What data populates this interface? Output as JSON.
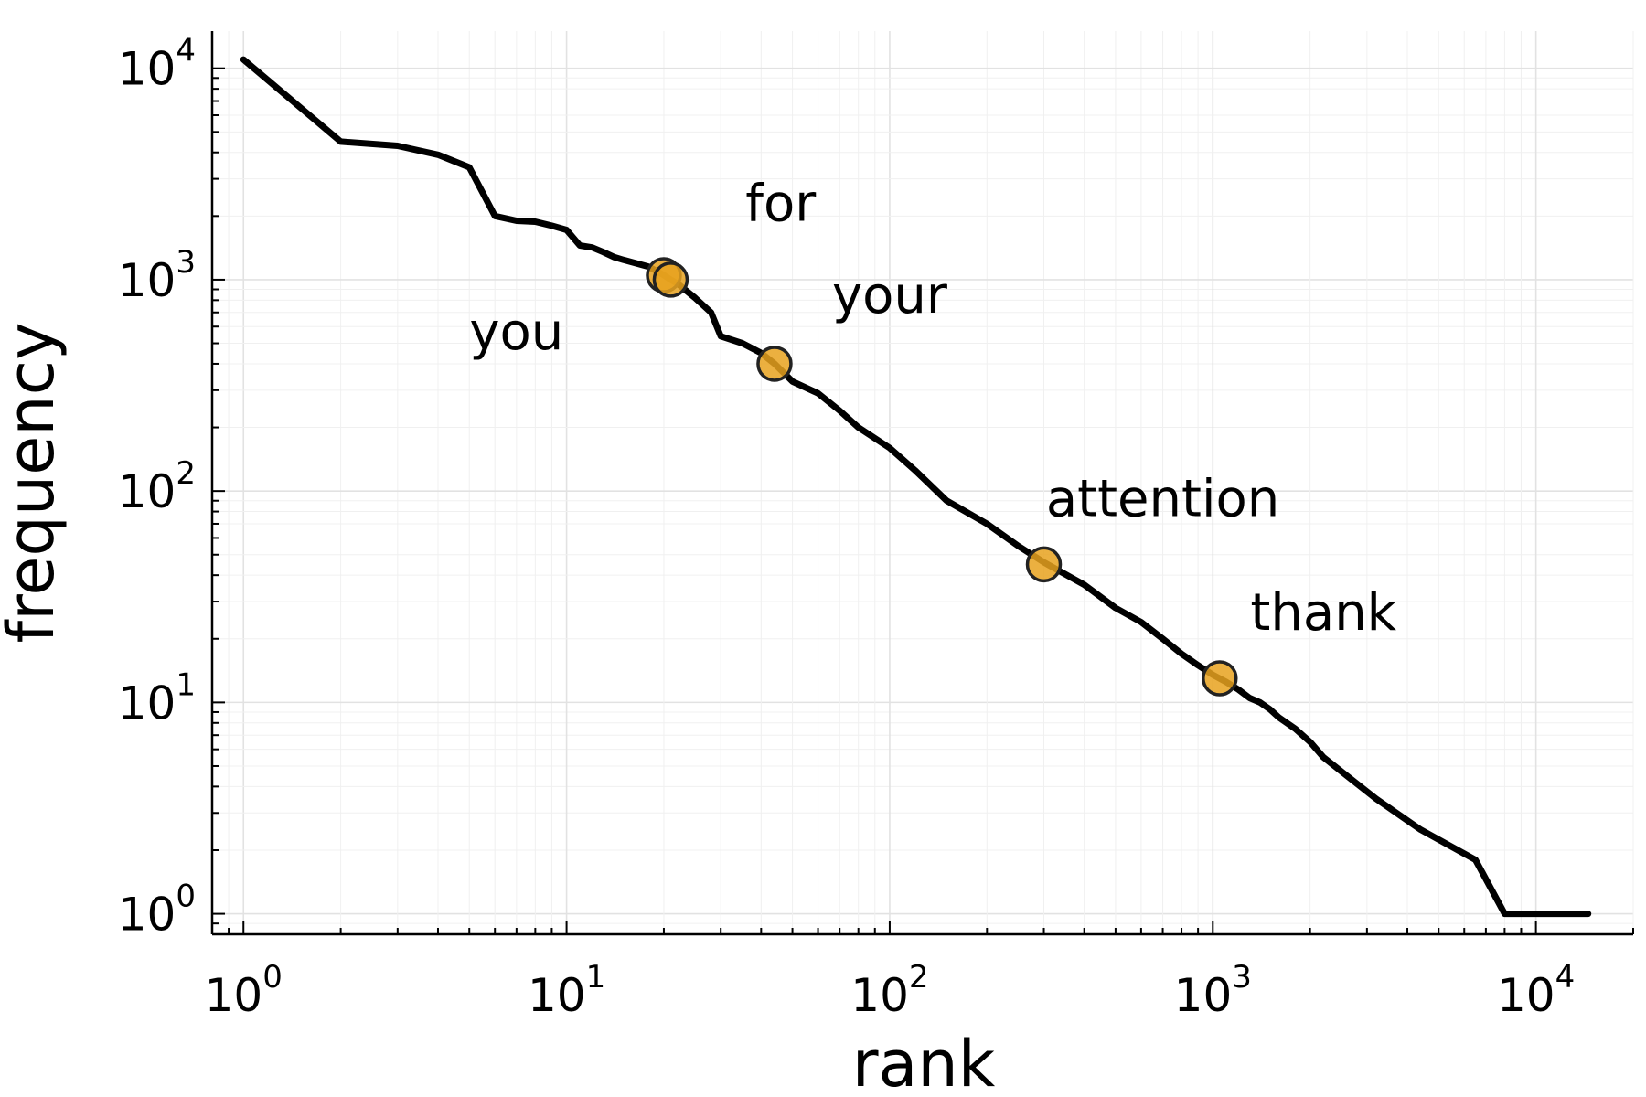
{
  "chart_data": {
    "type": "line",
    "title": "",
    "xlabel": "rank",
    "ylabel": "frequency",
    "xscale": "log",
    "yscale": "log",
    "xlim": [
      0.8,
      20000
    ],
    "ylim": [
      0.8,
      15000
    ],
    "grid": true,
    "legend": "none",
    "x_ticks": [
      {
        "base": "10",
        "exp": "0",
        "value": 1
      },
      {
        "base": "10",
        "exp": "1",
        "value": 10
      },
      {
        "base": "10",
        "exp": "2",
        "value": 100
      },
      {
        "base": "10",
        "exp": "3",
        "value": 1000
      },
      {
        "base": "10",
        "exp": "4",
        "value": 10000
      }
    ],
    "y_ticks": [
      {
        "base": "10",
        "exp": "0",
        "value": 1
      },
      {
        "base": "10",
        "exp": "1",
        "value": 10
      },
      {
        "base": "10",
        "exp": "2",
        "value": 100
      },
      {
        "base": "10",
        "exp": "3",
        "value": 1000
      },
      {
        "base": "10",
        "exp": "4",
        "value": 10000
      }
    ],
    "series": [
      {
        "line_color": "#000000",
        "x": [
          1,
          2,
          3,
          4,
          5,
          6,
          7,
          8,
          9,
          10,
          11,
          12,
          13,
          14,
          15,
          18,
          20,
          21,
          22,
          25,
          28,
          30,
          35,
          40,
          44,
          50,
          60,
          70,
          80,
          100,
          120,
          150,
          200,
          250,
          300,
          400,
          500,
          600,
          700,
          800,
          900,
          1000,
          1100,
          1200,
          1300,
          1400,
          1500,
          1600,
          1800,
          2000,
          2200,
          2600,
          3200,
          4400,
          6500,
          8000,
          10000,
          12000,
          14500
        ],
        "y": [
          11000,
          4500,
          4300,
          3900,
          3400,
          2000,
          1900,
          1880,
          1800,
          1720,
          1450,
          1420,
          1350,
          1280,
          1240,
          1150,
          1050,
          1000,
          960,
          820,
          700,
          540,
          500,
          450,
          400,
          330,
          290,
          240,
          200,
          160,
          125,
          90,
          70,
          55,
          46,
          36,
          28,
          24,
          20,
          17,
          15,
          13.5,
          12.5,
          11.5,
          10.5,
          10,
          9.3,
          8.5,
          7.5,
          6.5,
          5.5,
          4.5,
          3.5,
          2.5,
          1.8,
          1,
          1,
          1,
          1
        ]
      }
    ],
    "marker_color": "#E8A21F",
    "annotations": [
      {
        "word": "you",
        "rank": 20,
        "freq": 1050,
        "label_x": 7,
        "label_y": 470
      },
      {
        "word": "for",
        "rank": 21,
        "freq": 1000,
        "label_x": 46,
        "label_y": 1900
      },
      {
        "word": "your",
        "rank": 44,
        "freq": 400,
        "label_x": 100,
        "label_y": 700
      },
      {
        "word": "attention",
        "rank": 300,
        "freq": 45,
        "label_x": 700,
        "label_y": 76
      },
      {
        "word": "thank",
        "rank": 1050,
        "freq": 13,
        "label_x": 2200,
        "label_y": 22
      }
    ]
  }
}
